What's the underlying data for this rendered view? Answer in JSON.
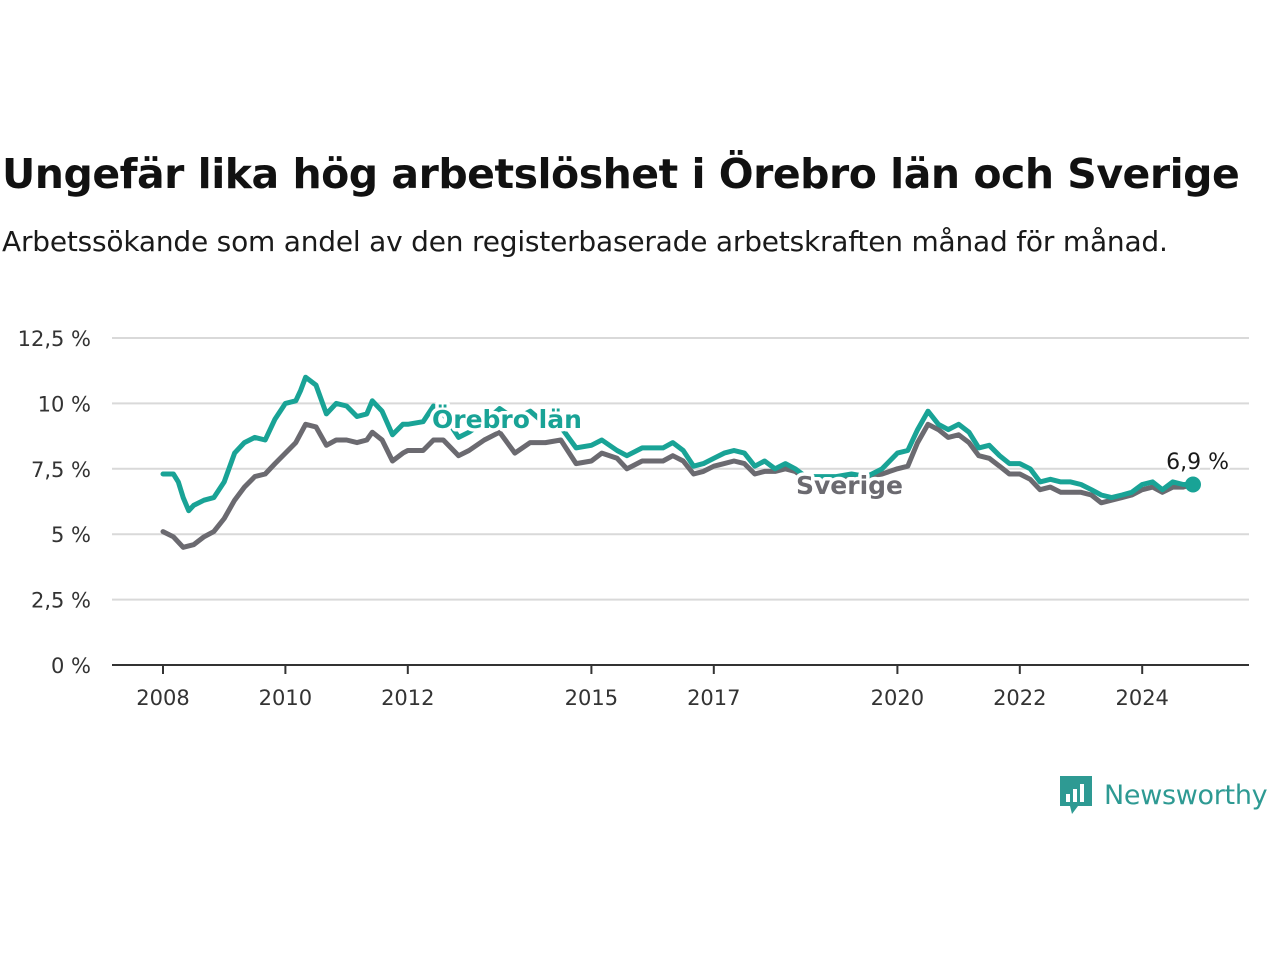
{
  "title": "Ungefär lika hög arbetslöshet i Örebro län och Sverige",
  "subtitle": "Arbetssökande som andel av den registerbaserade arbetskraften månad för månad.",
  "brand": "Newsworthy",
  "colors": {
    "orebro": "#19a396",
    "sverige": "#6b6a70",
    "grid": "#d9d9d9",
    "axis": "#333333",
    "brand": "#2e9a93"
  },
  "chart_data": {
    "type": "line",
    "title": "Ungefär lika hög arbetslöshet i Örebro län och Sverige",
    "subtitle": "Arbetssökande som andel av den registerbaserade arbetskraften månad för månad.",
    "xlabel": "",
    "ylabel": "",
    "ylim": [
      0,
      12.5
    ],
    "xlim": [
      2007.7,
      2026.2
    ],
    "y_ticks": [
      0,
      2.5,
      5,
      7.5,
      10,
      12.5
    ],
    "y_tick_labels": [
      "0 %",
      "2,5 %",
      "5 %",
      "7,5 %",
      "10 %",
      "12,5 %"
    ],
    "x_ticks": [
      2008,
      2010,
      2012,
      2015,
      2017,
      2020,
      2022,
      2024
    ],
    "x_tick_labels": [
      "2008",
      "2010",
      "2012",
      "2015",
      "2017",
      "2020",
      "2022",
      "2024"
    ],
    "grid": true,
    "legend": "inline labels",
    "end_label": "6,9 %",
    "series": [
      {
        "name": "Örebro län",
        "color": "#19a396",
        "points": [
          [
            2008.0,
            7.3
          ],
          [
            2008.17,
            7.3
          ],
          [
            2008.25,
            7.0
          ],
          [
            2008.33,
            6.4
          ],
          [
            2008.42,
            5.9
          ],
          [
            2008.5,
            6.1
          ],
          [
            2008.67,
            6.3
          ],
          [
            2008.83,
            6.4
          ],
          [
            2009.0,
            7.0
          ],
          [
            2009.17,
            8.1
          ],
          [
            2009.33,
            8.5
          ],
          [
            2009.5,
            8.7
          ],
          [
            2009.67,
            8.6
          ],
          [
            2009.83,
            9.4
          ],
          [
            2010.0,
            10.0
          ],
          [
            2010.17,
            10.1
          ],
          [
            2010.25,
            10.5
          ],
          [
            2010.33,
            11.0
          ],
          [
            2010.5,
            10.7
          ],
          [
            2010.67,
            9.6
          ],
          [
            2010.83,
            10.0
          ],
          [
            2011.0,
            9.9
          ],
          [
            2011.17,
            9.5
          ],
          [
            2011.33,
            9.6
          ],
          [
            2011.42,
            10.1
          ],
          [
            2011.58,
            9.7
          ],
          [
            2011.75,
            8.8
          ],
          [
            2011.92,
            9.2
          ],
          [
            2012.0,
            9.2
          ],
          [
            2012.25,
            9.3
          ],
          [
            2012.42,
            9.9
          ],
          [
            2012.58,
            9.6
          ],
          [
            2012.83,
            8.7
          ],
          [
            2013.0,
            8.9
          ],
          [
            2013.25,
            9.3
          ],
          [
            2013.5,
            9.8
          ],
          [
            2013.75,
            9.4
          ],
          [
            2014.0,
            9.7
          ],
          [
            2014.25,
            9.2
          ],
          [
            2014.5,
            9.1
          ],
          [
            2014.75,
            8.3
          ],
          [
            2015.0,
            8.4
          ],
          [
            2015.17,
            8.6
          ],
          [
            2015.42,
            8.2
          ],
          [
            2015.58,
            8.0
          ],
          [
            2015.83,
            8.3
          ],
          [
            2016.0,
            8.3
          ],
          [
            2016.17,
            8.3
          ],
          [
            2016.33,
            8.5
          ],
          [
            2016.5,
            8.2
          ],
          [
            2016.67,
            7.6
          ],
          [
            2016.83,
            7.7
          ],
          [
            2017.0,
            7.9
          ],
          [
            2017.17,
            8.1
          ],
          [
            2017.33,
            8.2
          ],
          [
            2017.5,
            8.1
          ],
          [
            2017.67,
            7.6
          ],
          [
            2017.83,
            7.8
          ],
          [
            2018.0,
            7.5
          ],
          [
            2018.17,
            7.7
          ],
          [
            2018.33,
            7.5
          ],
          [
            2018.5,
            7.2
          ],
          [
            2018.75,
            7.2
          ],
          [
            2019.0,
            7.2
          ],
          [
            2019.25,
            7.3
          ],
          [
            2019.5,
            7.2
          ],
          [
            2019.75,
            7.5
          ],
          [
            2020.0,
            8.1
          ],
          [
            2020.17,
            8.2
          ],
          [
            2020.33,
            9.0
          ],
          [
            2020.5,
            9.7
          ],
          [
            2020.67,
            9.2
          ],
          [
            2020.83,
            9.0
          ],
          [
            2021.0,
            9.2
          ],
          [
            2021.17,
            8.9
          ],
          [
            2021.33,
            8.3
          ],
          [
            2021.5,
            8.4
          ],
          [
            2021.67,
            8.0
          ],
          [
            2021.83,
            7.7
          ],
          [
            2022.0,
            7.7
          ],
          [
            2022.17,
            7.5
          ],
          [
            2022.33,
            7.0
          ],
          [
            2022.5,
            7.1
          ],
          [
            2022.67,
            7.0
          ],
          [
            2022.83,
            7.0
          ],
          [
            2023.0,
            6.9
          ],
          [
            2023.17,
            6.7
          ],
          [
            2023.33,
            6.5
          ],
          [
            2023.5,
            6.4
          ],
          [
            2023.67,
            6.5
          ],
          [
            2023.83,
            6.6
          ],
          [
            2024.0,
            6.9
          ],
          [
            2024.17,
            7.0
          ],
          [
            2024.33,
            6.7
          ],
          [
            2024.5,
            7.0
          ],
          [
            2024.67,
            6.9
          ],
          [
            2024.83,
            6.9
          ]
        ]
      },
      {
        "name": "Sverige",
        "color": "#6b6a70",
        "points": [
          [
            2008.0,
            5.1
          ],
          [
            2008.17,
            4.9
          ],
          [
            2008.33,
            4.5
          ],
          [
            2008.5,
            4.6
          ],
          [
            2008.67,
            4.9
          ],
          [
            2008.83,
            5.1
          ],
          [
            2009.0,
            5.6
          ],
          [
            2009.17,
            6.3
          ],
          [
            2009.33,
            6.8
          ],
          [
            2009.5,
            7.2
          ],
          [
            2009.67,
            7.3
          ],
          [
            2009.83,
            7.7
          ],
          [
            2010.0,
            8.1
          ],
          [
            2010.17,
            8.5
          ],
          [
            2010.33,
            9.2
          ],
          [
            2010.5,
            9.1
          ],
          [
            2010.67,
            8.4
          ],
          [
            2010.83,
            8.6
          ],
          [
            2011.0,
            8.6
          ],
          [
            2011.17,
            8.5
          ],
          [
            2011.33,
            8.6
          ],
          [
            2011.42,
            8.9
          ],
          [
            2011.58,
            8.6
          ],
          [
            2011.75,
            7.8
          ],
          [
            2011.92,
            8.1
          ],
          [
            2012.0,
            8.2
          ],
          [
            2012.25,
            8.2
          ],
          [
            2012.42,
            8.6
          ],
          [
            2012.58,
            8.6
          ],
          [
            2012.83,
            8.0
          ],
          [
            2013.0,
            8.2
          ],
          [
            2013.25,
            8.6
          ],
          [
            2013.5,
            8.9
          ],
          [
            2013.75,
            8.1
          ],
          [
            2014.0,
            8.5
          ],
          [
            2014.25,
            8.5
          ],
          [
            2014.5,
            8.6
          ],
          [
            2014.75,
            7.7
          ],
          [
            2015.0,
            7.8
          ],
          [
            2015.17,
            8.1
          ],
          [
            2015.42,
            7.9
          ],
          [
            2015.58,
            7.5
          ],
          [
            2015.83,
            7.8
          ],
          [
            2016.0,
            7.8
          ],
          [
            2016.17,
            7.8
          ],
          [
            2016.33,
            8.0
          ],
          [
            2016.5,
            7.8
          ],
          [
            2016.67,
            7.3
          ],
          [
            2016.83,
            7.4
          ],
          [
            2017.0,
            7.6
          ],
          [
            2017.17,
            7.7
          ],
          [
            2017.33,
            7.8
          ],
          [
            2017.5,
            7.7
          ],
          [
            2017.67,
            7.3
          ],
          [
            2017.83,
            7.4
          ],
          [
            2018.0,
            7.4
          ],
          [
            2018.17,
            7.5
          ],
          [
            2018.33,
            7.4
          ],
          [
            2018.5,
            7.1
          ],
          [
            2018.75,
            7.1
          ],
          [
            2019.0,
            7.1
          ],
          [
            2019.25,
            7.2
          ],
          [
            2019.5,
            7.2
          ],
          [
            2019.75,
            7.3
          ],
          [
            2020.0,
            7.5
          ],
          [
            2020.17,
            7.6
          ],
          [
            2020.33,
            8.5
          ],
          [
            2020.5,
            9.2
          ],
          [
            2020.67,
            9.0
          ],
          [
            2020.83,
            8.7
          ],
          [
            2021.0,
            8.8
          ],
          [
            2021.17,
            8.5
          ],
          [
            2021.33,
            8.0
          ],
          [
            2021.5,
            7.9
          ],
          [
            2021.67,
            7.6
          ],
          [
            2021.83,
            7.3
          ],
          [
            2022.0,
            7.3
          ],
          [
            2022.17,
            7.1
          ],
          [
            2022.33,
            6.7
          ],
          [
            2022.5,
            6.8
          ],
          [
            2022.67,
            6.6
          ],
          [
            2022.83,
            6.6
          ],
          [
            2023.0,
            6.6
          ],
          [
            2023.17,
            6.5
          ],
          [
            2023.33,
            6.2
          ],
          [
            2023.5,
            6.3
          ],
          [
            2023.67,
            6.4
          ],
          [
            2023.83,
            6.5
          ],
          [
            2024.0,
            6.7
          ],
          [
            2024.17,
            6.8
          ],
          [
            2024.33,
            6.6
          ],
          [
            2024.5,
            6.8
          ],
          [
            2024.67,
            6.8
          ],
          [
            2024.83,
            6.9
          ]
        ]
      }
    ]
  }
}
